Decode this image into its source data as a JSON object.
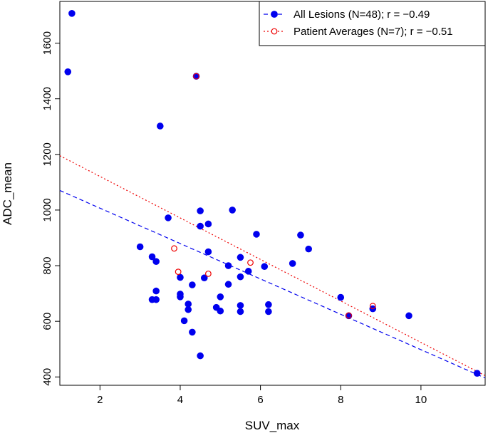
{
  "chart_data": {
    "type": "scatter",
    "xlabel": "SUV_max",
    "ylabel": "ADC_mean",
    "xlim": [
      1.0,
      11.6
    ],
    "ylim": [
      370,
      1750
    ],
    "x_ticks": [
      2,
      4,
      6,
      8,
      10
    ],
    "y_ticks": [
      400,
      600,
      800,
      1000,
      1200,
      1400,
      1600
    ],
    "grid": false,
    "legend_position": "top-right",
    "series": [
      {
        "name": "All Lesions (N=48); r = −0.49",
        "marker": "filled-circle",
        "color": "#0000ee",
        "line_style": "dashed",
        "fit": {
          "intercept": 1134,
          "slope": -63.6
        },
        "points": [
          [
            1.3,
            1707
          ],
          [
            1.2,
            1497
          ],
          [
            4.4,
            1481
          ],
          [
            3.5,
            1302
          ],
          [
            3.7,
            972
          ],
          [
            4.5,
            997
          ],
          [
            5.3,
            1000
          ],
          [
            4.5,
            942
          ],
          [
            4.7,
            950
          ],
          [
            5.9,
            913
          ],
          [
            7.0,
            910
          ],
          [
            3.0,
            868
          ],
          [
            4.7,
            850
          ],
          [
            7.2,
            860
          ],
          [
            3.3,
            832
          ],
          [
            3.4,
            815
          ],
          [
            5.5,
            830
          ],
          [
            6.8,
            808
          ],
          [
            5.2,
            800
          ],
          [
            6.1,
            797
          ],
          [
            5.7,
            780
          ],
          [
            5.5,
            760
          ],
          [
            4.0,
            758
          ],
          [
            4.6,
            756
          ],
          [
            5.2,
            733
          ],
          [
            4.3,
            731
          ],
          [
            3.4,
            709
          ],
          [
            4.0,
            698
          ],
          [
            4.0,
            688
          ],
          [
            5.0,
            688
          ],
          [
            8.0,
            686
          ],
          [
            3.3,
            678
          ],
          [
            3.4,
            678
          ],
          [
            4.2,
            662
          ],
          [
            5.5,
            657
          ],
          [
            6.2,
            660
          ],
          [
            4.9,
            650
          ],
          [
            4.2,
            642
          ],
          [
            5.0,
            637
          ],
          [
            5.5,
            635
          ],
          [
            6.2,
            635
          ],
          [
            8.8,
            645
          ],
          [
            9.7,
            620
          ],
          [
            8.2,
            620
          ],
          [
            4.1,
            602
          ],
          [
            4.3,
            561
          ],
          [
            4.5,
            476
          ],
          [
            11.4,
            413
          ]
        ]
      },
      {
        "name": "Patient Averages (N=7); r = −0.51",
        "marker": "open-circle",
        "color": "#ee0000",
        "line_style": "dotted",
        "fit": {
          "intercept": 1270,
          "slope": -74.6
        },
        "points": [
          [
            4.4,
            1481
          ],
          [
            3.85,
            862
          ],
          [
            5.75,
            811
          ],
          [
            3.95,
            778
          ],
          [
            4.7,
            771
          ],
          [
            8.8,
            655
          ],
          [
            8.2,
            621
          ]
        ]
      }
    ]
  }
}
